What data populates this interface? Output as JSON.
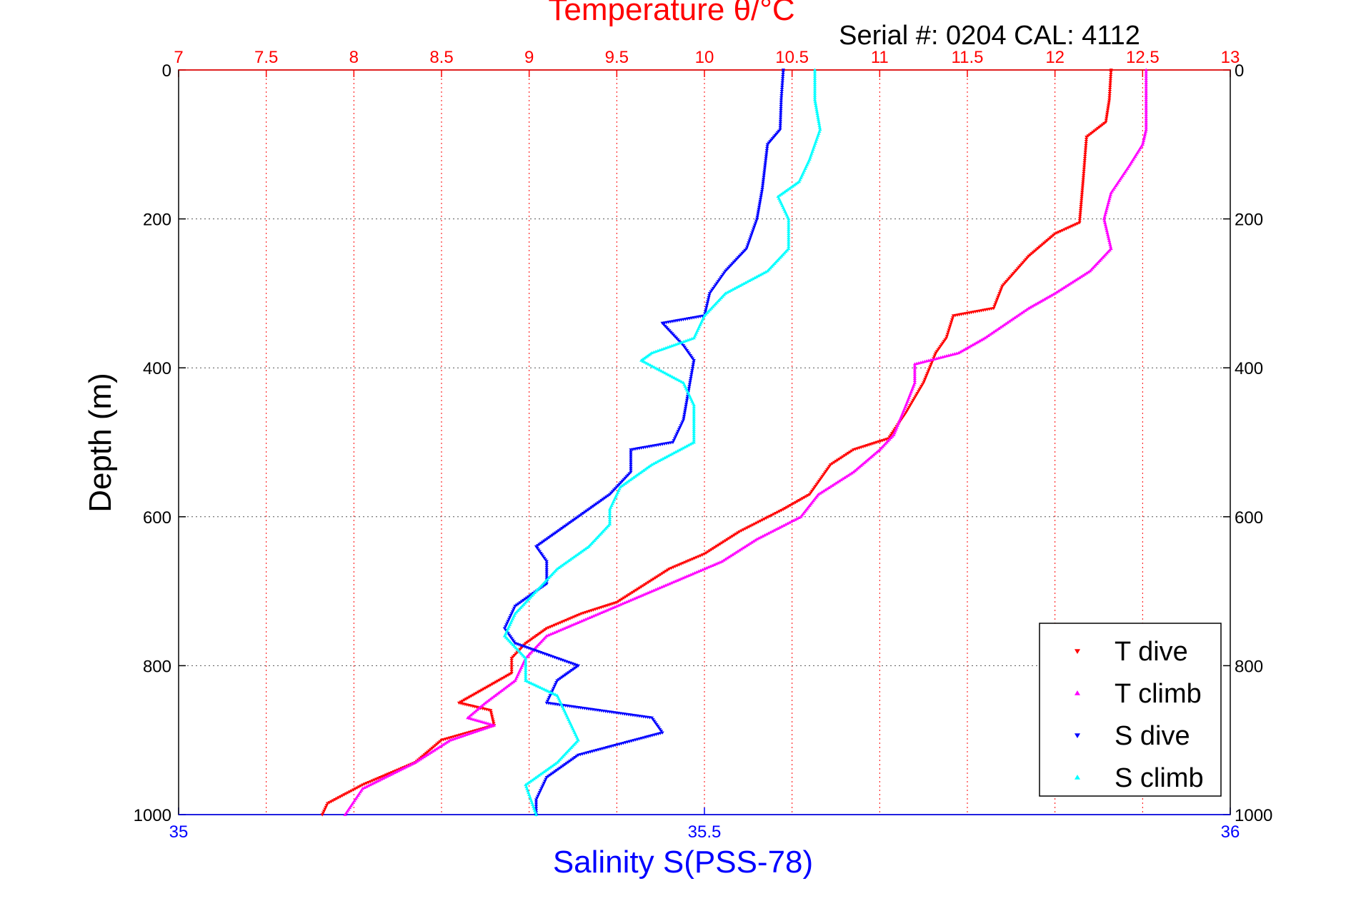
{
  "chart_data": {
    "type": "scatter",
    "title": "Temperature θ/°C",
    "subtitle": "Serial #: 0204  CAL: 4112",
    "ylabel": "Depth (m)",
    "xlabel_bottom": "Salinity S(PSS-78)",
    "ylim": [
      0,
      1000
    ],
    "y_reversed": true,
    "xlim_top": [
      7,
      13
    ],
    "xlim_bottom": [
      35,
      36
    ],
    "top_ticks": [
      "7",
      "7.5",
      "8",
      "8.5",
      "9",
      "9.5",
      "10",
      "10.5",
      "11",
      "11.5",
      "12",
      "12.5",
      "13"
    ],
    "bottom_ticks": [
      "35",
      "35.5",
      "36"
    ],
    "left_ticks": [
      "0",
      "200",
      "400",
      "600",
      "800",
      "1000"
    ],
    "right_ticks": [
      "0",
      "200",
      "400",
      "600",
      "800",
      "1000"
    ],
    "grid": true,
    "legend_position": "bottom-right",
    "colors": {
      "t_dive": "#ff0000",
      "t_climb": "#ff00ff",
      "s_dive": "#0000ff",
      "s_climb": "#00ffff",
      "grid": "#555555",
      "top_axis": "#ff0000"
    },
    "series": [
      {
        "name": "T dive",
        "axis": "top",
        "marker": "triangle-down",
        "color": "#ff0000",
        "points": [
          [
            12.32,
            0
          ],
          [
            12.31,
            40
          ],
          [
            12.29,
            70
          ],
          [
            12.18,
            90
          ],
          [
            12.16,
            150
          ],
          [
            12.14,
            205
          ],
          [
            12.0,
            220
          ],
          [
            11.85,
            250
          ],
          [
            11.7,
            290
          ],
          [
            11.65,
            320
          ],
          [
            11.42,
            330
          ],
          [
            11.38,
            360
          ],
          [
            11.32,
            380
          ],
          [
            11.25,
            420
          ],
          [
            11.15,
            460
          ],
          [
            11.05,
            495
          ],
          [
            10.85,
            510
          ],
          [
            10.72,
            530
          ],
          [
            10.6,
            570
          ],
          [
            10.45,
            590
          ],
          [
            10.2,
            620
          ],
          [
            10.0,
            650
          ],
          [
            9.8,
            670
          ],
          [
            9.6,
            700
          ],
          [
            9.5,
            715
          ],
          [
            9.3,
            730
          ],
          [
            9.1,
            750
          ],
          [
            8.98,
            770
          ],
          [
            8.9,
            790
          ],
          [
            8.9,
            810
          ],
          [
            8.75,
            830
          ],
          [
            8.6,
            850
          ],
          [
            8.78,
            860
          ],
          [
            8.8,
            880
          ],
          [
            8.5,
            900
          ],
          [
            8.35,
            930
          ],
          [
            8.05,
            960
          ],
          [
            7.85,
            985
          ],
          [
            7.82,
            1000
          ]
        ]
      },
      {
        "name": "T climb",
        "axis": "top",
        "marker": "triangle-up",
        "color": "#ff00ff",
        "points": [
          [
            12.52,
            0
          ],
          [
            12.52,
            40
          ],
          [
            12.52,
            80
          ],
          [
            12.5,
            100
          ],
          [
            12.42,
            130
          ],
          [
            12.32,
            165
          ],
          [
            12.28,
            200
          ],
          [
            12.32,
            240
          ],
          [
            12.2,
            270
          ],
          [
            12.0,
            300
          ],
          [
            11.85,
            320
          ],
          [
            11.6,
            360
          ],
          [
            11.45,
            380
          ],
          [
            11.2,
            395
          ],
          [
            11.2,
            420
          ],
          [
            11.15,
            450
          ],
          [
            11.08,
            490
          ],
          [
            11.0,
            510
          ],
          [
            10.85,
            540
          ],
          [
            10.65,
            570
          ],
          [
            10.55,
            600
          ],
          [
            10.3,
            630
          ],
          [
            10.1,
            660
          ],
          [
            9.9,
            680
          ],
          [
            9.7,
            700
          ],
          [
            9.5,
            720
          ],
          [
            9.3,
            740
          ],
          [
            9.1,
            760
          ],
          [
            8.98,
            790
          ],
          [
            8.92,
            820
          ],
          [
            8.75,
            850
          ],
          [
            8.65,
            870
          ],
          [
            8.8,
            880
          ],
          [
            8.55,
            900
          ],
          [
            8.35,
            930
          ],
          [
            8.05,
            965
          ],
          [
            7.95,
            1000
          ]
        ]
      },
      {
        "name": "S dive",
        "axis": "bottom",
        "marker": "triangle-down",
        "color": "#0000ff",
        "points": [
          [
            35.575,
            0
          ],
          [
            35.573,
            40
          ],
          [
            35.572,
            80
          ],
          [
            35.56,
            100
          ],
          [
            35.555,
            160
          ],
          [
            35.55,
            200
          ],
          [
            35.54,
            240
          ],
          [
            35.52,
            270
          ],
          [
            35.505,
            300
          ],
          [
            35.5,
            330
          ],
          [
            35.46,
            340
          ],
          [
            35.48,
            370
          ],
          [
            35.49,
            390
          ],
          [
            35.485,
            430
          ],
          [
            35.48,
            470
          ],
          [
            35.47,
            500
          ],
          [
            35.43,
            510
          ],
          [
            35.43,
            540
          ],
          [
            35.41,
            570
          ],
          [
            35.38,
            600
          ],
          [
            35.36,
            620
          ],
          [
            35.34,
            640
          ],
          [
            35.35,
            660
          ],
          [
            35.35,
            690
          ],
          [
            35.32,
            720
          ],
          [
            35.31,
            750
          ],
          [
            35.32,
            770
          ],
          [
            35.38,
            800
          ],
          [
            35.36,
            820
          ],
          [
            35.35,
            850
          ],
          [
            35.45,
            870
          ],
          [
            35.46,
            890
          ],
          [
            35.38,
            920
          ],
          [
            35.35,
            950
          ],
          [
            35.34,
            980
          ],
          [
            35.34,
            1000
          ]
        ]
      },
      {
        "name": "S climb",
        "axis": "bottom",
        "marker": "triangle-up",
        "color": "#00ffff",
        "points": [
          [
            35.605,
            0
          ],
          [
            35.605,
            40
          ],
          [
            35.61,
            80
          ],
          [
            35.6,
            120
          ],
          [
            35.59,
            150
          ],
          [
            35.57,
            170
          ],
          [
            35.58,
            200
          ],
          [
            35.58,
            240
          ],
          [
            35.56,
            270
          ],
          [
            35.52,
            300
          ],
          [
            35.5,
            330
          ],
          [
            35.49,
            360
          ],
          [
            35.45,
            380
          ],
          [
            35.44,
            390
          ],
          [
            35.48,
            420
          ],
          [
            35.49,
            450
          ],
          [
            35.49,
            480
          ],
          [
            35.49,
            500
          ],
          [
            35.45,
            530
          ],
          [
            35.42,
            560
          ],
          [
            35.41,
            590
          ],
          [
            35.41,
            610
          ],
          [
            35.39,
            640
          ],
          [
            35.36,
            670
          ],
          [
            35.34,
            700
          ],
          [
            35.32,
            730
          ],
          [
            35.31,
            760
          ],
          [
            35.33,
            790
          ],
          [
            35.33,
            820
          ],
          [
            35.36,
            840
          ],
          [
            35.37,
            870
          ],
          [
            35.38,
            900
          ],
          [
            35.36,
            930
          ],
          [
            35.33,
            960
          ],
          [
            35.34,
            1000
          ]
        ]
      }
    ]
  },
  "legend": {
    "items": [
      {
        "label": "T dive",
        "color": "#ff0000",
        "marker": "triangle-down"
      },
      {
        "label": "T climb",
        "color": "#ff00ff",
        "marker": "triangle-up"
      },
      {
        "label": "S dive",
        "color": "#0000ff",
        "marker": "triangle-down"
      },
      {
        "label": "S climb",
        "color": "#00ffff",
        "marker": "triangle-up"
      }
    ]
  }
}
